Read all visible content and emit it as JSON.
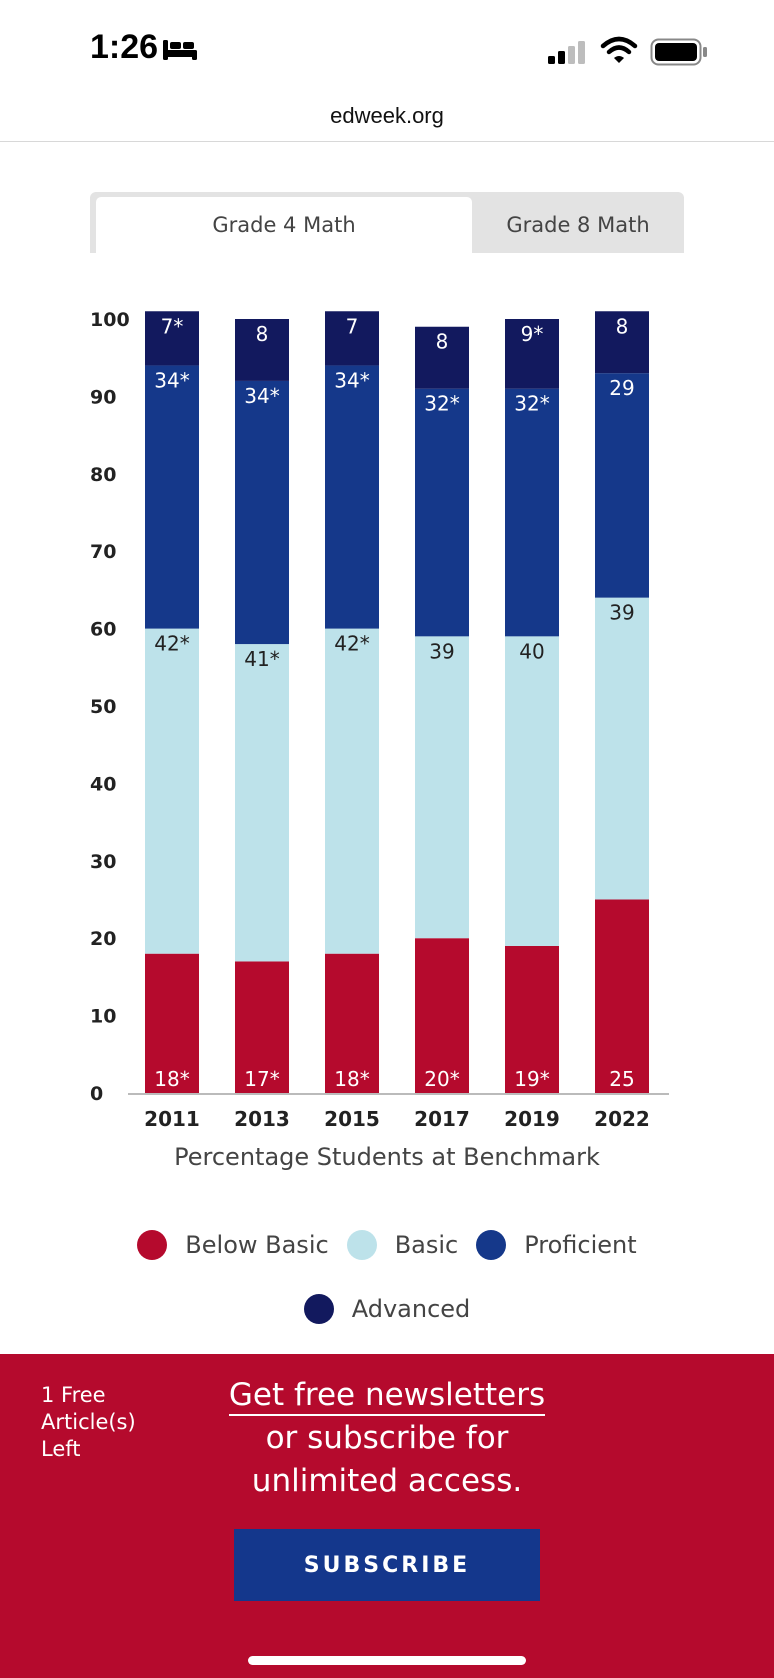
{
  "status_bar": {
    "time": "1:26"
  },
  "browser": {
    "url": "edweek.org"
  },
  "tabs": [
    {
      "label": "Grade 4 Math",
      "active": true
    },
    {
      "label": "Grade 8 Math",
      "active": false
    }
  ],
  "chart_data": {
    "type": "bar",
    "stacked": true,
    "categories": [
      "2011",
      "2013",
      "2015",
      "2017",
      "2019",
      "2022"
    ],
    "series": [
      {
        "name": "Below Basic",
        "color": "#b50a2d",
        "label_color": "#ffffff",
        "values": [
          18,
          17,
          18,
          20,
          19,
          25
        ],
        "labels": [
          "18*",
          "17*",
          "18*",
          "20*",
          "19*",
          "25"
        ]
      },
      {
        "name": "Basic",
        "color": "#bde2ea",
        "label_color": "#222222",
        "values": [
          42,
          41,
          42,
          39,
          40,
          39
        ],
        "labels": [
          "42*",
          "41*",
          "42*",
          "39",
          "40",
          "39"
        ]
      },
      {
        "name": "Proficient",
        "color": "#15388a",
        "label_color": "#ffffff",
        "values": [
          34,
          34,
          34,
          32,
          32,
          29
        ],
        "labels": [
          "34*",
          "34*",
          "34*",
          "32*",
          "32*",
          "29"
        ]
      },
      {
        "name": "Advanced",
        "color": "#12195e",
        "label_color": "#ffffff",
        "values": [
          7,
          8,
          7,
          8,
          9,
          8
        ],
        "labels": [
          "7*",
          "8",
          "7",
          "8",
          "9*",
          "8"
        ]
      }
    ],
    "yticks": [
      0,
      10,
      20,
      30,
      40,
      50,
      60,
      70,
      80,
      90,
      100
    ],
    "ylim": [
      0,
      100
    ],
    "xlabel": "Percentage Students at Benchmark",
    "ylabel": "",
    "legend": [
      "Below Basic",
      "Basic",
      "Proficient",
      "Advanced"
    ],
    "legend_position": "bottom"
  },
  "banner": {
    "free_count": "1 Free Article(s) Left",
    "cta_link": "Get free newsletters",
    "cta_line2": "or subscribe for",
    "cta_line3": "unlimited access.",
    "subscribe_label": "SUBSCRIBE"
  }
}
